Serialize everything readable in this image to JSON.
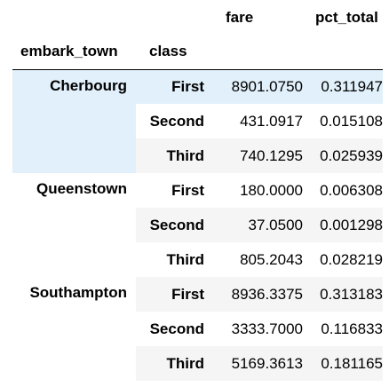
{
  "table": {
    "columns": {
      "fare": "fare",
      "pct_total": "pct_total"
    },
    "index_names": {
      "embark_town": "embark_town",
      "class": "class"
    },
    "groups": [
      {
        "town": "Cherbourg",
        "rows": [
          {
            "class": "First",
            "fare": "8901.0750",
            "pct_total": "0.311947"
          },
          {
            "class": "Second",
            "fare": "431.0917",
            "pct_total": "0.015108"
          },
          {
            "class": "Third",
            "fare": "740.1295",
            "pct_total": "0.025939"
          }
        ]
      },
      {
        "town": "Queenstown",
        "rows": [
          {
            "class": "First",
            "fare": "180.0000",
            "pct_total": "0.006308"
          },
          {
            "class": "Second",
            "fare": "37.0500",
            "pct_total": "0.001298"
          },
          {
            "class": "Third",
            "fare": "805.2043",
            "pct_total": "0.028219"
          }
        ]
      },
      {
        "town": "Southampton",
        "rows": [
          {
            "class": "First",
            "fare": "8936.3375",
            "pct_total": "0.313183"
          },
          {
            "class": "Second",
            "fare": "3333.7000",
            "pct_total": "0.116833"
          },
          {
            "class": "Third",
            "fare": "5169.3613",
            "pct_total": "0.181165"
          }
        ]
      }
    ]
  },
  "colors": {
    "hover_highlight": "#e1f0fa",
    "stripe": "#f5f5f5",
    "border": "#000000"
  }
}
